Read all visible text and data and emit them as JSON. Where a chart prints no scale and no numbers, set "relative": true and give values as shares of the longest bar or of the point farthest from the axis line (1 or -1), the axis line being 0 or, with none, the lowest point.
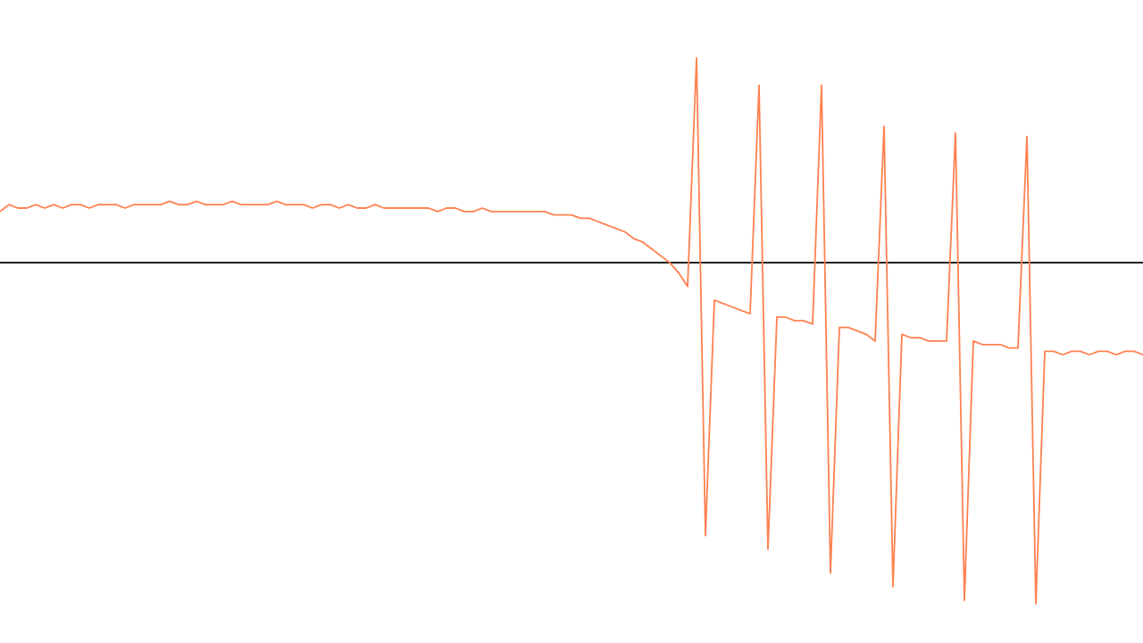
{
  "chart_data": {
    "type": "line",
    "relative": true,
    "categories": [
      null,
      null,
      null,
      null,
      null,
      null,
      null,
      null,
      null,
      null,
      null,
      null,
      null,
      null,
      null,
      null,
      null,
      null,
      null,
      null,
      null,
      null,
      null,
      null,
      null,
      null,
      null,
      null,
      null,
      null,
      null,
      null,
      null,
      null,
      null,
      null,
      null,
      null,
      null,
      null,
      null,
      null,
      null,
      null,
      null,
      null,
      null,
      null,
      null,
      null,
      null,
      null,
      null,
      null,
      null,
      null,
      null,
      null,
      null,
      null,
      null,
      null,
      null,
      null,
      null,
      null,
      null,
      null,
      null,
      null,
      null,
      null,
      null,
      null,
      null,
      null,
      null,
      null,
      null,
      null,
      null,
      null,
      null,
      null,
      null,
      null,
      null,
      null,
      null,
      null,
      null,
      null,
      null,
      null,
      null,
      null,
      null,
      null,
      null,
      null,
      null,
      null,
      null,
      null,
      null,
      null,
      null,
      null,
      null,
      null,
      null,
      null,
      null,
      null,
      null,
      null,
      null,
      null,
      null,
      null,
      null,
      null,
      null,
      null,
      null,
      null,
      null,
      null,
      null
    ],
    "series": [
      {
        "color": "#ff8150",
        "values": [
          0.15,
          0.17,
          0.16,
          0.16,
          0.17,
          0.16,
          0.17,
          0.16,
          0.17,
          0.17,
          0.16,
          0.17,
          0.17,
          0.17,
          0.16,
          0.17,
          0.17,
          0.17,
          0.17,
          0.18,
          0.17,
          0.17,
          0.18,
          0.17,
          0.17,
          0.17,
          0.18,
          0.17,
          0.17,
          0.17,
          0.17,
          0.18,
          0.17,
          0.17,
          0.17,
          0.16,
          0.17,
          0.17,
          0.16,
          0.17,
          0.16,
          0.16,
          0.17,
          0.16,
          0.16,
          0.16,
          0.16,
          0.16,
          0.16,
          0.15,
          0.16,
          0.16,
          0.15,
          0.15,
          0.16,
          0.15,
          0.15,
          0.15,
          0.15,
          0.15,
          0.15,
          0.15,
          0.14,
          0.14,
          0.14,
          0.13,
          0.13,
          0.12,
          0.11,
          0.1,
          0.09,
          0.07,
          0.06,
          0.04,
          0.02,
          0.0,
          -0.03,
          -0.07,
          0.6,
          -0.8,
          -0.11,
          -0.12,
          -0.13,
          -0.14,
          -0.15,
          0.52,
          -0.84,
          -0.16,
          -0.16,
          -0.17,
          -0.17,
          -0.18,
          0.52,
          -0.91,
          -0.19,
          -0.19,
          -0.2,
          -0.21,
          -0.23,
          0.4,
          -0.95,
          -0.21,
          -0.22,
          -0.22,
          -0.23,
          -0.23,
          -0.23,
          0.38,
          -0.99,
          -0.23,
          -0.24,
          -0.24,
          -0.24,
          -0.25,
          -0.25,
          0.37,
          -1,
          -0.26,
          -0.26,
          -0.27,
          -0.26,
          -0.26,
          -0.27,
          -0.26,
          -0.26,
          -0.27,
          -0.26,
          -0.26,
          -0.27
        ]
      }
    ]
  }
}
